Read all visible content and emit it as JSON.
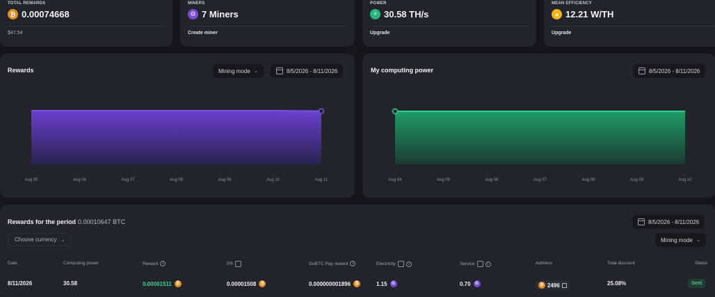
{
  "stats": [
    {
      "label": "TOTAL REWARDS",
      "value": "0.00074668",
      "footer": "$47.54",
      "icon": "bitcoin-icon",
      "color": "#e48f1e"
    },
    {
      "label": "MINERS",
      "value": "7 Miners",
      "footer": "Create miner",
      "icon": "miner-icon",
      "color": "#7b4bd6"
    },
    {
      "label": "POWER",
      "value": "30.58 TH/s",
      "footer": "Upgrade",
      "icon": "lightning-icon",
      "color": "#27b67a"
    },
    {
      "label": "MEAN EFFICIENCY",
      "value": "12.21 W/TH",
      "footer": "Upgrade",
      "icon": "bulb-icon",
      "color": "#f3b51a"
    }
  ],
  "rewards_chart": {
    "title": "Rewards",
    "mode_label": "Mining mode",
    "date_range": "8/5/2026 - 8/11/2026"
  },
  "power_chart": {
    "title": "My computing power",
    "date_range": "8/5/2026 - 8/11/2026"
  },
  "chart_data": [
    {
      "type": "area",
      "title": "Rewards",
      "x": [
        "Aug 05",
        "Aug 06",
        "Aug 07",
        "Aug 08",
        "Aug 09",
        "Aug 10",
        "Aug 11"
      ],
      "values": [
        1,
        1,
        1,
        1,
        1,
        1,
        0.99
      ],
      "color": "#7b4bd6"
    },
    {
      "type": "area",
      "title": "My computing power",
      "x": [
        "Aug 04",
        "Aug 05",
        "Aug 06",
        "Aug 07",
        "Aug 08",
        "Aug 09",
        "Aug 10"
      ],
      "values": [
        1,
        1,
        1,
        1,
        1,
        1,
        1
      ],
      "color": "#27b67a"
    }
  ],
  "period": {
    "title": "Rewards for the period",
    "value": "0.00010647 BTC",
    "currency_button": "Choose currency",
    "date_range": "8/5/2026 - 8/11/2026",
    "mode_label": "Mining mode"
  },
  "table": {
    "headers": [
      "Date",
      "Computing power",
      "Reward",
      "PR",
      "GoBTC Pay reward",
      "Electricity",
      "Service",
      "Address",
      "Total discount",
      "Status"
    ],
    "row": {
      "date": "8/11/2026",
      "power": "30.58",
      "reward": "0.00001511",
      "pr": "0.00001508",
      "gobtc": "0.000000001896",
      "electricity": "1.15",
      "service": "0.70",
      "address": "2496",
      "discount": "25.08%",
      "status": "Sent"
    }
  }
}
